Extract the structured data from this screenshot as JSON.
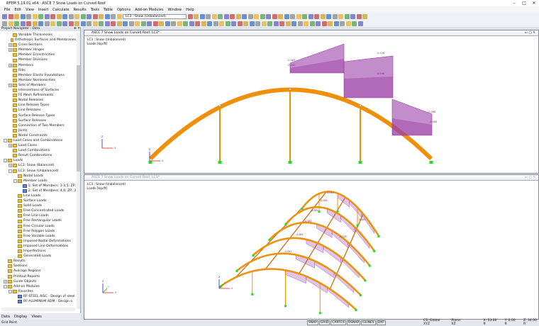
{
  "app": {
    "title": "RFEM 5.19.01 x64 - ASCE 7 Snow Loads on Curved Roof"
  },
  "menu": [
    "File",
    "Edit",
    "View",
    "Insert",
    "Calculate",
    "Results",
    "Tools",
    "Table",
    "Options",
    "Add-on Modules",
    "Window",
    "Help"
  ],
  "toolbar": {
    "loadcase_select": "LC3 - Snow (Unbalanced)"
  },
  "navigator": {
    "title": "Project Navigator - Data",
    "items": [
      {
        "label": "Variable Thicknesses",
        "level": 2
      },
      {
        "label": "Orthotropic Surfaces and Membranes",
        "level": 2
      },
      {
        "label": "Cross-Sections",
        "level": 2,
        "exp": "+"
      },
      {
        "label": "Member Hinges",
        "level": 2,
        "exp": "+"
      },
      {
        "label": "Member Eccentricities",
        "level": 2
      },
      {
        "label": "Member Divisions",
        "level": 2
      },
      {
        "label": "Members",
        "level": 2,
        "exp": "+"
      },
      {
        "label": "Ribs",
        "level": 2
      },
      {
        "label": "Member Elastic Foundations",
        "level": 2
      },
      {
        "label": "Member Nonlinearities",
        "level": 2
      },
      {
        "label": "Sets of Members",
        "level": 2,
        "exp": "+"
      },
      {
        "label": "Intersections of Surfaces",
        "level": 2
      },
      {
        "label": "FE Mesh Refinements",
        "level": 2
      },
      {
        "label": "Nodal Releases",
        "level": 2
      },
      {
        "label": "Line Release Types",
        "level": 2
      },
      {
        "label": "Line Releases",
        "level": 2
      },
      {
        "label": "Surface Release Types",
        "level": 2
      },
      {
        "label": "Surface Releases",
        "level": 2
      },
      {
        "label": "Connection of Two Members",
        "level": 2
      },
      {
        "label": "Joints",
        "level": 2
      },
      {
        "label": "Nodal Constraints",
        "level": 2
      },
      {
        "label": "Load Cases and Combinations",
        "level": 1,
        "exp": "-"
      },
      {
        "label": "Load Cases",
        "level": 2,
        "exp": "+"
      },
      {
        "label": "Load Combinations",
        "level": 2
      },
      {
        "label": "Result Combinations",
        "level": 2
      },
      {
        "label": "Loads",
        "level": 1,
        "exp": "-"
      },
      {
        "label": "LC2: Snow (Balanced)",
        "level": 2,
        "exp": "+"
      },
      {
        "label": "LC3: Snow (Unbalanced)",
        "level": 2,
        "exp": "-"
      },
      {
        "label": "Nodal Loads",
        "level": 3
      },
      {
        "label": "Member Loads",
        "level": 3,
        "exp": "-"
      },
      {
        "label": "1: Set of Members: 1-3,5; ZP;",
        "level": 4,
        "blue": true
      },
      {
        "label": "2: Set of Members: 4,6; ZP; 3",
        "level": 4,
        "blue": true
      },
      {
        "label": "Line Loads",
        "level": 3
      },
      {
        "label": "Surface Loads",
        "level": 3
      },
      {
        "label": "Solid Loads",
        "level": 3
      },
      {
        "label": "Free Concentrated Loads",
        "level": 3
      },
      {
        "label": "Free Line Loads",
        "level": 3
      },
      {
        "label": "Free Rectangular Loads",
        "level": 3
      },
      {
        "label": "Free Circular Loads",
        "level": 3
      },
      {
        "label": "Free Polygon Loads",
        "level": 3
      },
      {
        "label": "Free Variable Loads",
        "level": 3
      },
      {
        "label": "Imposed Nodal Deformations",
        "level": 3
      },
      {
        "label": "Imposed Line Deformations",
        "level": 3
      },
      {
        "label": "Imperfections",
        "level": 3
      },
      {
        "label": "Generated Loads",
        "level": 3
      },
      {
        "label": "Results",
        "level": 1
      },
      {
        "label": "Sections",
        "level": 1
      },
      {
        "label": "Average Regions",
        "level": 1
      },
      {
        "label": "Printout Reports",
        "level": 1
      },
      {
        "label": "Guide Objects",
        "level": 1,
        "exp": "+"
      },
      {
        "label": "Add-on Modules",
        "level": 1,
        "exp": "-"
      },
      {
        "label": "Favorites",
        "level": 2,
        "exp": "-"
      },
      {
        "label": "RF-STEEL AISC - Design of steel",
        "level": 3,
        "blue": true
      },
      {
        "label": "RF-ALUMINUM ADM - Design o",
        "level": 3,
        "blue": true
      }
    ],
    "tabs": [
      "Data",
      "Display",
      "Views"
    ]
  },
  "view_top": {
    "title": "ASCE 7 Snow Loads on Curved Roof, LC3*",
    "lc": "LC3 : Snow (Unbalanced)",
    "units": "Loads [kip/ft]",
    "labels": [
      "-0.084",
      "-0.042",
      "-0.126",
      "-0.100",
      "-0.068",
      "-0.084"
    ]
  },
  "view_bottom": {
    "title": "ASCE 7 Snow Loads on Curved Roof, LC3*",
    "lc": "LC3 : Snow (Unbalanced)",
    "units": "Loads [kip/ft]",
    "labels": [
      "-0.042",
      "-0.084",
      "-0.084",
      "-0.084",
      "-0.084",
      "-0.042",
      "-0.126",
      "-0.084"
    ]
  },
  "axes": {
    "x": "X",
    "y": "Y",
    "z": "Z"
  },
  "status": {
    "left": "Grid Point",
    "toggles": [
      "SNAP",
      "GRID",
      "CARTES",
      "OSNAP",
      "GLINES",
      "DXF"
    ],
    "cs": "CS: Global XYZ",
    "plane": "Plane: XZ",
    "x": "X: 53.00 ft",
    "y": "Y: 0.00 ft",
    "z": "Z: 34.00 ft"
  },
  "colors": {
    "member": "#f0900a",
    "load": "#9b3fa6",
    "support": "#22dd22"
  }
}
